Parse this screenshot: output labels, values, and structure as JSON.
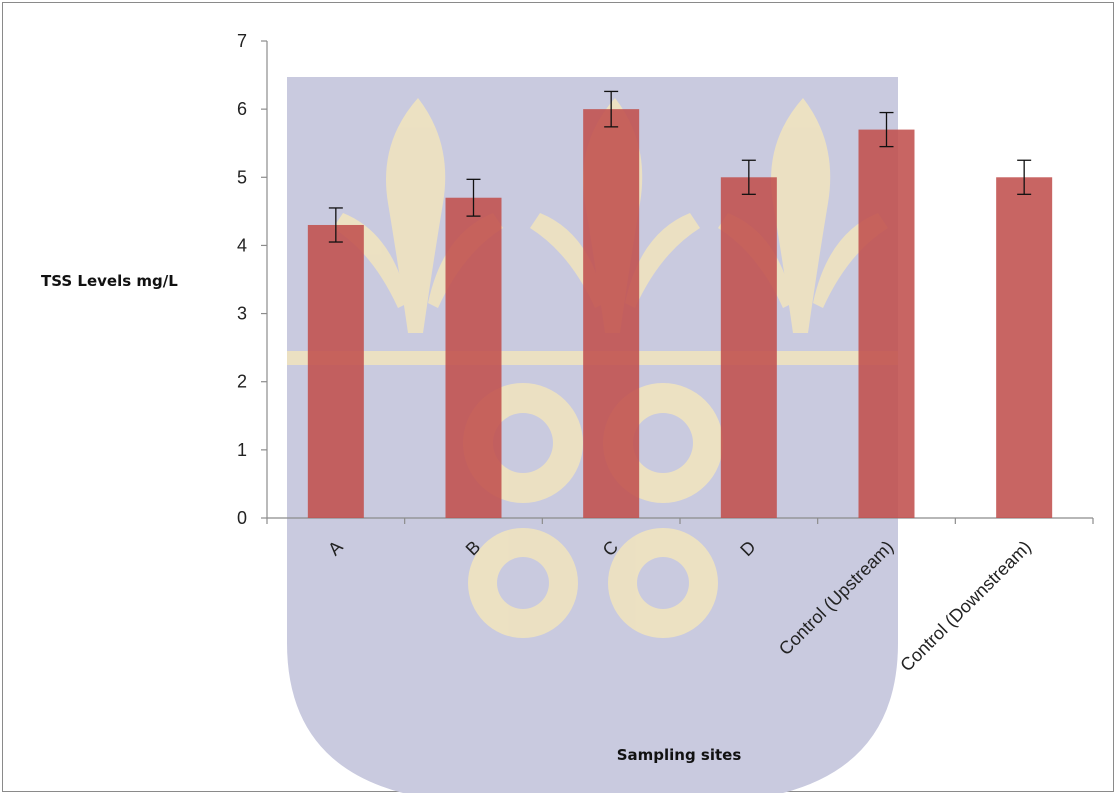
{
  "chart_data": {
    "type": "bar",
    "title": "",
    "xlabel": "Sampling sites",
    "ylabel": "TSS Levels mg/L",
    "categories": [
      "A",
      "B",
      "C",
      "D",
      "Control (Upstream)",
      "Control (Downstream)"
    ],
    "values": [
      4.3,
      4.7,
      6.0,
      5.0,
      5.7,
      5.0
    ],
    "error": [
      0.25,
      0.27,
      0.26,
      0.25,
      0.25,
      0.25
    ],
    "ylim": [
      0,
      7
    ],
    "yticks": [
      0,
      1,
      2,
      3,
      4,
      5,
      6,
      7
    ],
    "grid": false,
    "legend": "none",
    "colors": {
      "bar": "#c0504d",
      "error_bar": "#111111",
      "axis": "#8c8c8c",
      "watermark_shield": "#c9cadf",
      "watermark_motif": "#efe6c8"
    },
    "watermark": "university-crest"
  }
}
